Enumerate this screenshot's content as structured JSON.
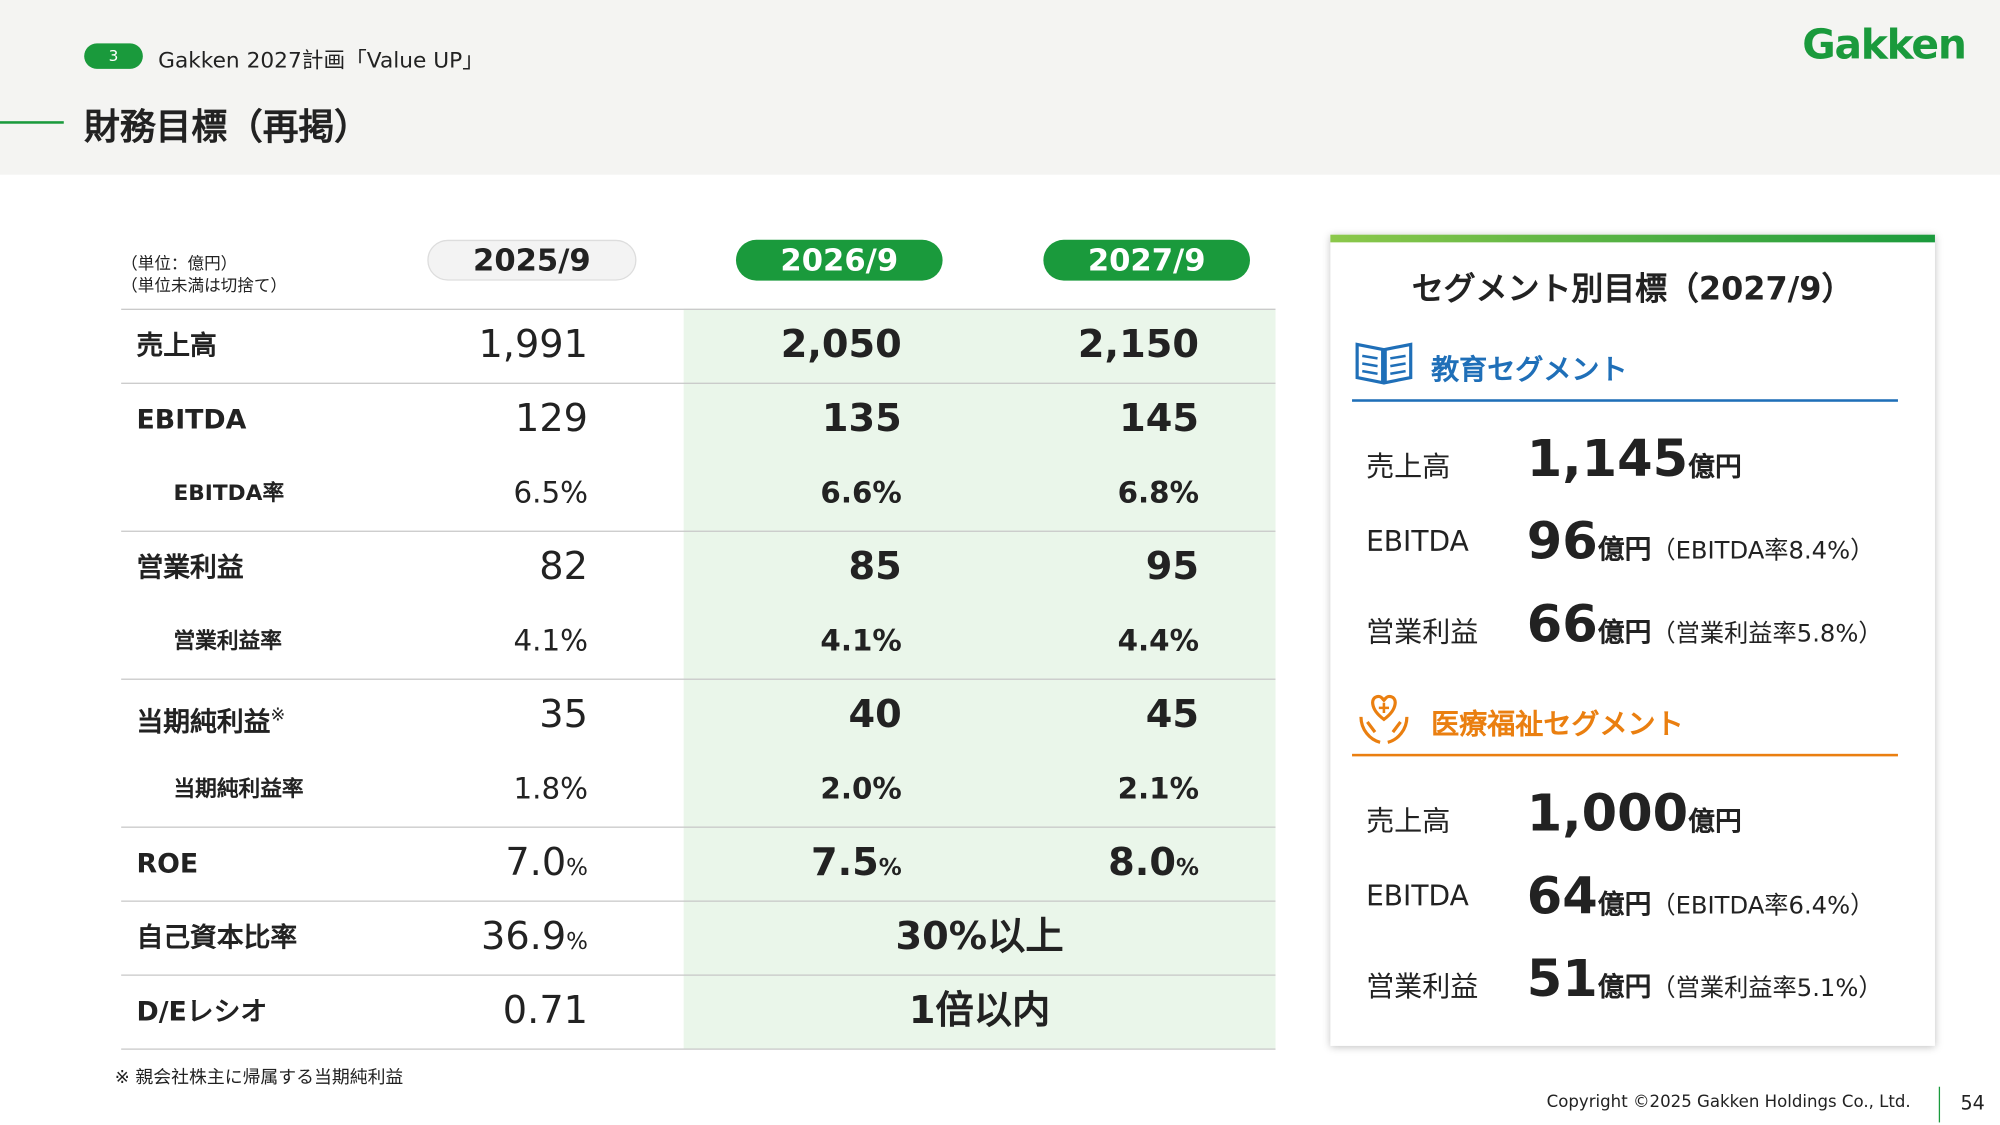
{
  "header": {
    "section_number": "3",
    "section_title": "Gakken 2027計画「Value UP」",
    "title": "財務目標（再掲）",
    "logo": "Gakken"
  },
  "table": {
    "unit_notes": [
      "（単位：億円）",
      "（単位未満は切捨て）"
    ],
    "columns": [
      "2025/9",
      "2026/9",
      "2027/9"
    ],
    "groups": [
      {
        "rows": [
          {
            "label": "売上高",
            "cells": [
              "1,991",
              "2,050",
              "2,150"
            ]
          }
        ]
      },
      {
        "rows": [
          {
            "label": "EBITDA",
            "cells": [
              "129",
              "135",
              "145"
            ]
          },
          {
            "label": "EBITDA率",
            "cells": [
              "6.5%",
              "6.6%",
              "6.8%"
            ]
          }
        ]
      },
      {
        "rows": [
          {
            "label": "営業利益",
            "cells": [
              "82",
              "85",
              "95"
            ]
          },
          {
            "label": "営業利益率",
            "cells": [
              "4.1%",
              "4.1%",
              "4.4%"
            ]
          }
        ]
      },
      {
        "rows": [
          {
            "label": "当期純利益",
            "mark": "※",
            "cells": [
              "35",
              "40",
              "45"
            ]
          },
          {
            "label": "当期純利益率",
            "cells": [
              "1.8%",
              "2.0%",
              "2.1%"
            ]
          }
        ]
      },
      {
        "rows": [
          {
            "label": "ROE",
            "cells": [
              {
                "text": "7.0",
                "unit": "%"
              },
              {
                "text": "7.5",
                "unit": "%"
              },
              {
                "text": "8.0",
                "unit": "%"
              }
            ]
          }
        ]
      },
      {
        "rows": [
          {
            "label": "自己資本比率",
            "cells": [
              {
                "text": "36.9",
                "unit": "%"
              },
              "30%以上"
            ]
          }
        ]
      },
      {
        "rows": [
          {
            "label": "D/Eレシオ",
            "cells": [
              "0.71",
              "1倍以内"
            ]
          }
        ]
      }
    ],
    "footnote": "※ 親会社株主に帰属する当期純利益"
  },
  "segment_panel": {
    "title": "セグメント別目標（2027/9）",
    "segments": [
      {
        "name": "教育セグメント",
        "color": "#1f6fb8",
        "items": [
          {
            "label": "売上高",
            "value": "1,145",
            "unit": "億円"
          },
          {
            "label": "EBITDA",
            "value": "96",
            "unit": "億円",
            "note": "（EBITDA率8.4%）"
          },
          {
            "label": "営業利益",
            "value": "66",
            "unit": "億円",
            "note": "（営業利益率5.8%）"
          }
        ]
      },
      {
        "name": "医療福祉セグメント",
        "color": "#ea7f10",
        "items": [
          {
            "label": "売上高",
            "value": "1,000",
            "unit": "億円"
          },
          {
            "label": "EBITDA",
            "value": "64",
            "unit": "億円",
            "note": "（EBITDA率6.4%）"
          },
          {
            "label": "営業利益",
            "value": "51",
            "unit": "億円",
            "note": "（営業利益率5.1%）"
          }
        ]
      }
    ]
  },
  "footer": {
    "copyright": "Copyright ©2025 Gakken Holdings Co., Ltd.",
    "page": "54"
  }
}
